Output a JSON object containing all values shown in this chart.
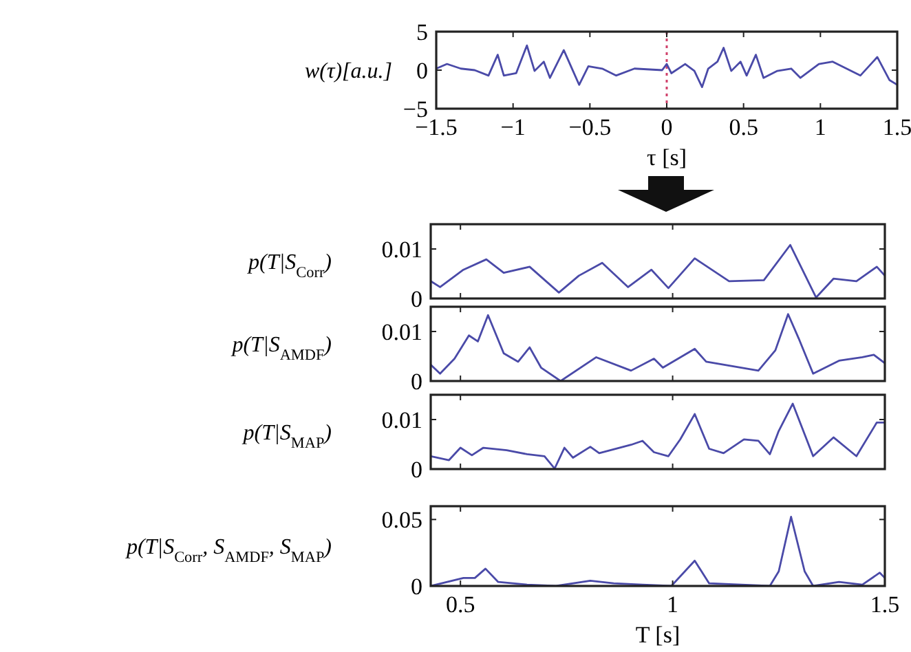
{
  "chart_data": [
    {
      "type": "line",
      "ylabel": "w(τ)[a.u.]",
      "xlabel": "τ [s]",
      "xlim": [
        -1.5,
        1.5
      ],
      "ylim": [
        -5,
        5
      ],
      "xticks": [
        {
          "value": -1.5,
          "label": "−1.5"
        },
        {
          "value": -1,
          "label": "−1"
        },
        {
          "value": -0.5,
          "label": "−0.5"
        },
        0,
        0.5,
        1,
        1.5
      ],
      "yticks": [
        {
          "value": -5,
          "label": "−5"
        },
        0,
        5
      ],
      "ref_lines": [
        {
          "axis": "x",
          "value": 0,
          "label": null,
          "color": "#d0406a",
          "line_style": "dotted"
        }
      ],
      "series": [
        {
          "color": "#4a4aa8",
          "x": [
            -1.5,
            -1.43,
            -1.34,
            -1.25,
            -1.16,
            -1.1,
            -1.06,
            -0.98,
            -0.91,
            -0.86,
            -0.8,
            -0.76,
            -0.67,
            -0.61,
            -0.57,
            -0.51,
            -0.42,
            -0.33,
            -0.21,
            -0.03,
            0,
            0.03,
            0.12,
            0.18,
            0.23,
            0.27,
            0.33,
            0.37,
            0.42,
            0.48,
            0.52,
            0.58,
            0.63,
            0.72,
            0.81,
            0.87,
            0.99,
            1.08,
            1.17,
            1.26,
            1.37,
            1.45,
            1.5
          ],
          "values": [
            0.2,
            0.8,
            0.2,
            0,
            -0.7,
            2,
            -0.7,
            -0.4,
            3.2,
            -0.1,
            1.1,
            -1,
            2.6,
            -0.1,
            -1.9,
            0.5,
            0.2,
            -0.7,
            0.2,
            0,
            0.8,
            -0.4,
            0.8,
            -0.1,
            -2.2,
            0.2,
            1.1,
            2.9,
            -0.1,
            1.1,
            -0.7,
            2,
            -1,
            -0.1,
            0.2,
            -1,
            0.8,
            1.1,
            0.2,
            -0.7,
            1.7,
            -1.3,
            -1.9
          ]
        }
      ]
    },
    {
      "type": "line",
      "ylabel": "p(T|S$_{Corr}$)",
      "xlim": [
        0.43,
        1.5
      ],
      "ylim": [
        0,
        0.015
      ],
      "xticks": [
        0.5,
        1,
        1.5
      ],
      "yticks": [
        0,
        0.01
      ],
      "tick_labels": "y",
      "series": [
        {
          "color": "#4a4aa8",
          "x": [
            0.43,
            0.452,
            0.507,
            0.561,
            0.602,
            0.663,
            0.732,
            0.779,
            0.834,
            0.895,
            0.95,
            0.99,
            1.052,
            1.133,
            1.215,
            1.277,
            1.338,
            1.379,
            1.433,
            1.481,
            1.5
          ],
          "values": [
            0.0035,
            0.0023,
            0.0058,
            0.0079,
            0.0052,
            0.0064,
            0.0012,
            0.0046,
            0.0072,
            0.0023,
            0.0058,
            0.0021,
            0.0081,
            0.0035,
            0.0037,
            0.0108,
            0.0002,
            0.004,
            0.0035,
            0.0064,
            0.0046
          ]
        }
      ]
    },
    {
      "type": "line",
      "ylabel": "p(T|S$_{AMDF}$)",
      "xlim": [
        0.43,
        1.5
      ],
      "ylim": [
        0,
        0.015
      ],
      "xticks": [
        0.5,
        1,
        1.5
      ],
      "yticks": [
        0,
        0.01
      ],
      "tick_labels": "y",
      "series": [
        {
          "color": "#4a4aa8",
          "x": [
            0.43,
            0.452,
            0.486,
            0.52,
            0.541,
            0.565,
            0.602,
            0.636,
            0.663,
            0.69,
            0.736,
            0.82,
            0.902,
            0.956,
            0.977,
            1.052,
            1.079,
            1.202,
            1.242,
            1.272,
            1.297,
            1.331,
            1.392,
            1.447,
            1.474,
            1.5
          ],
          "values": [
            0.0033,
            0.0015,
            0.0045,
            0.0092,
            0.008,
            0.0133,
            0.0056,
            0.0039,
            0.0068,
            0.0027,
            0,
            0.0048,
            0.0021,
            0.0045,
            0.0027,
            0.0065,
            0.0039,
            0.0021,
            0.0062,
            0.0135,
            0.0086,
            0.0015,
            0.0041,
            0.0048,
            0.0053,
            0.0036
          ]
        }
      ]
    },
    {
      "type": "line",
      "ylabel": "p(T|S$_{MAP}$)",
      "xlim": [
        0.43,
        1.5
      ],
      "ylim": [
        0,
        0.015
      ],
      "xticks": [
        0.5,
        1,
        1.5
      ],
      "yticks": [
        0,
        0.01
      ],
      "tick_labels": "y",
      "series": [
        {
          "color": "#4a4aa8",
          "x": [
            0.43,
            0.473,
            0.5,
            0.527,
            0.554,
            0.609,
            0.657,
            0.698,
            0.722,
            0.745,
            0.765,
            0.806,
            0.827,
            0.902,
            0.929,
            0.956,
            0.99,
            1.018,
            1.052,
            1.086,
            1.12,
            1.168,
            1.202,
            1.229,
            1.25,
            1.283,
            1.331,
            1.379,
            1.433,
            1.481,
            1.5
          ],
          "values": [
            0.0026,
            0.0018,
            0.0043,
            0.0028,
            0.0043,
            0.0038,
            0.003,
            0.0026,
            0.0001,
            0.0043,
            0.0023,
            0.0045,
            0.0032,
            0.0049,
            0.0057,
            0.0034,
            0.0026,
            0.006,
            0.0111,
            0.0041,
            0.0032,
            0.006,
            0.0057,
            0.003,
            0.0077,
            0.0132,
            0.0026,
            0.0064,
            0.0026,
            0.0094,
            0.0094
          ]
        }
      ]
    },
    {
      "type": "line",
      "ylabel": "p(T|S$_{Corr}$, S$_{AMDF}$, S$_{MAP}$)",
      "xlabel": "T [s]",
      "xlim": [
        0.43,
        1.5
      ],
      "ylim": [
        0,
        0.06
      ],
      "xticks": [
        0.5,
        1,
        1.5
      ],
      "yticks": [
        0,
        0.05
      ],
      "series": [
        {
          "color": "#4a4aa8",
          "x": [
            0.43,
            0.507,
            0.534,
            0.559,
            0.589,
            0.657,
            0.725,
            0.806,
            0.861,
            0.929,
            0.997,
            1.052,
            1.086,
            1.229,
            1.25,
            1.279,
            1.311,
            1.331,
            1.392,
            1.447,
            1.488,
            1.5
          ],
          "values": [
            0,
            0.006,
            0.006,
            0.013,
            0.003,
            0.001,
            0,
            0.004,
            0.002,
            0.001,
            0,
            0.019,
            0.002,
            0,
            0.011,
            0.052,
            0.011,
            0,
            0.003,
            0.001,
            0.01,
            0.006
          ]
        }
      ]
    }
  ]
}
